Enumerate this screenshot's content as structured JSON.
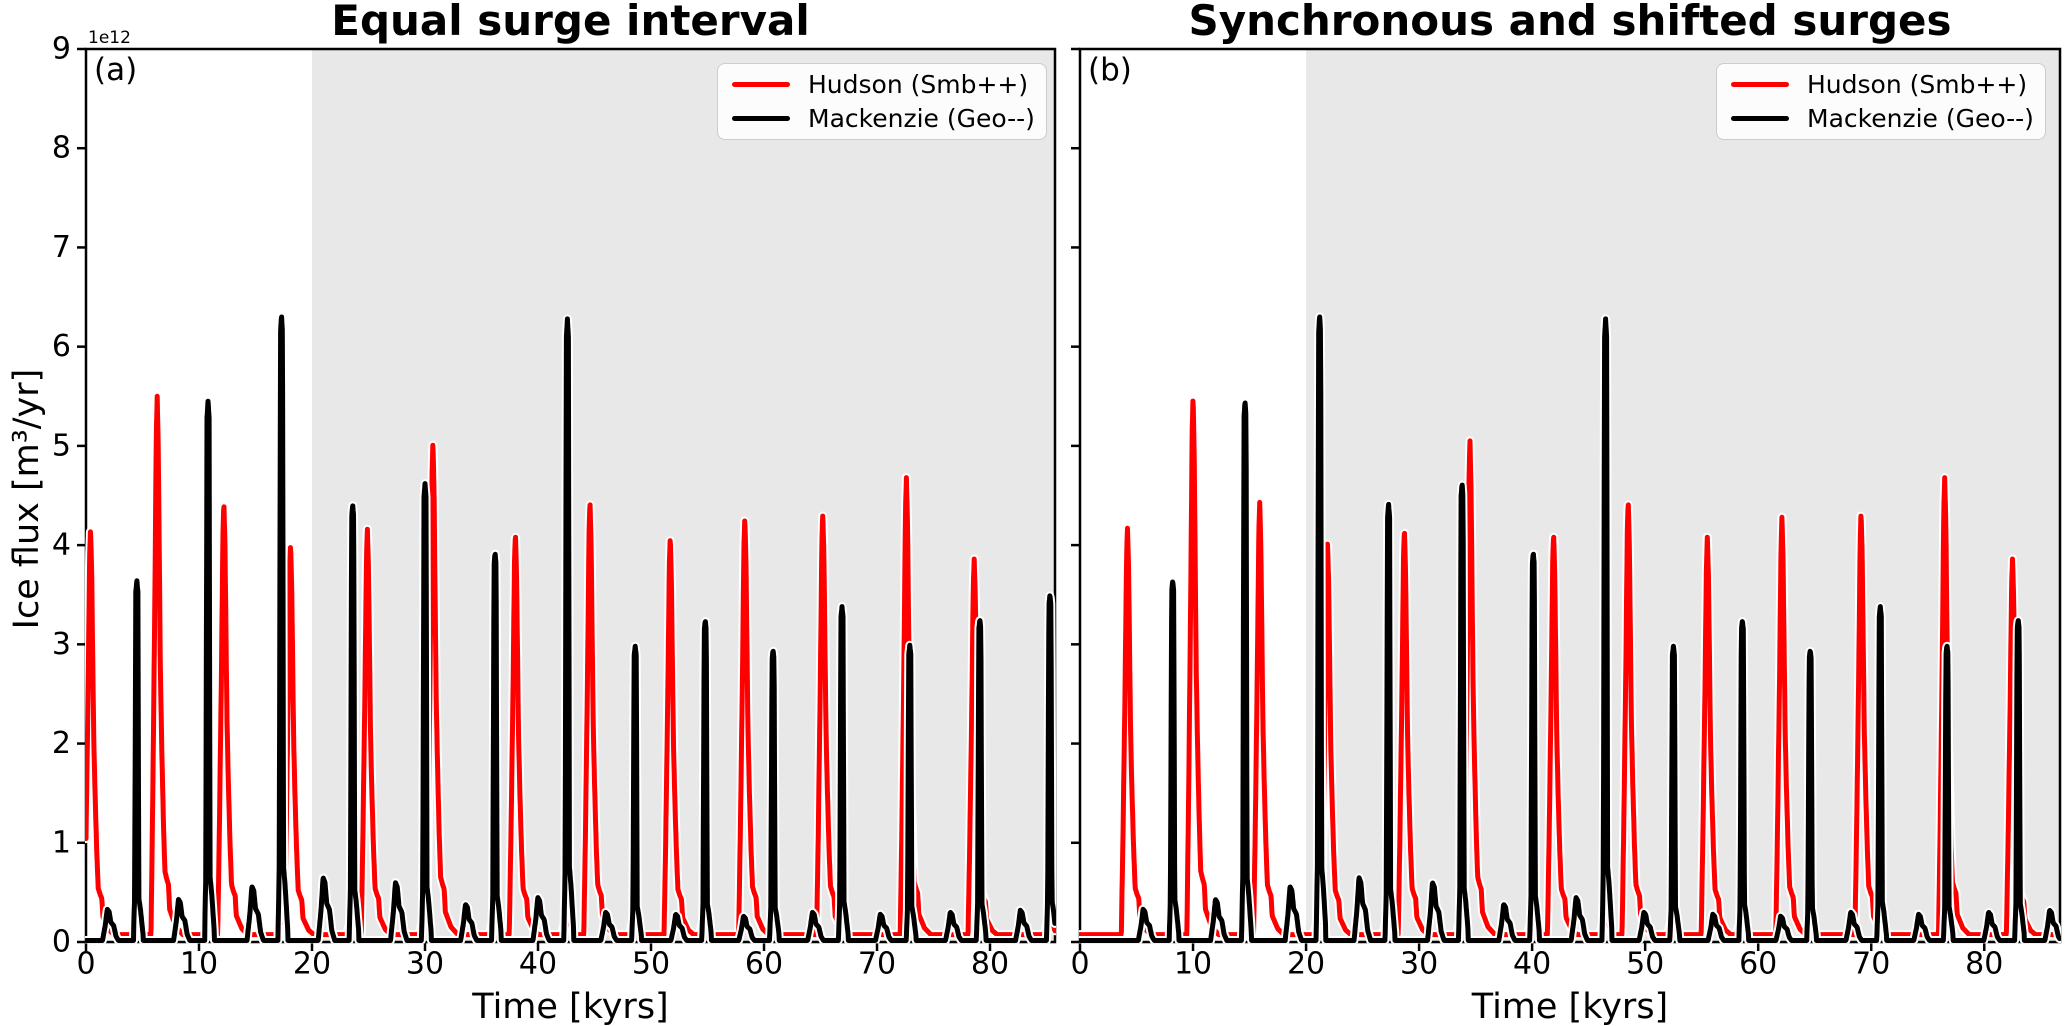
{
  "figure": {
    "background": "#ffffff",
    "hudson_color": "#ff0000",
    "mackenzie_color": "#000000",
    "shade_color": "#e8e8e8",
    "legend_border_color": "#cccccc"
  },
  "axes": {
    "ylabel": "Ice flux [m³/yr]",
    "xlabel": "Time [kyrs]",
    "offset_label": "1e12",
    "yticks": [
      0,
      1,
      2,
      3,
      4,
      5,
      6,
      7,
      8,
      9
    ],
    "xticks": [
      0,
      10,
      20,
      30,
      40,
      50,
      60,
      70,
      80
    ]
  },
  "legend": {
    "entries": [
      {
        "label": "Hudson (Smb++)",
        "color": "#ff0000"
      },
      {
        "label": "Mackenzie (Geo--)",
        "color": "#000000"
      }
    ]
  },
  "chart_data": [
    {
      "type": "line",
      "title": "Equal surge interval",
      "panel_label": "(a)",
      "xlabel": "Time [kyrs]",
      "ylabel": "Ice flux [m³/yr]",
      "y_scale_factor": "1e12",
      "xlim": [
        0,
        85.75
      ],
      "ylim": [
        0,
        9.0
      ],
      "grid": false,
      "legend_position": "upper right",
      "shaded_region_kyr": [
        20,
        85.75
      ],
      "series": [
        {
          "name": "Hudson (Smb++)",
          "color": "#ff0000",
          "baseline": 0.075,
          "surge_peaks": {
            "t": [
              0.4,
              6.3,
              12.2,
              18.1,
              24.9,
              30.7,
              38.0,
              44.6,
              51.7,
              58.3,
              65.2,
              72.6,
              78.6
            ],
            "v": [
              4.17,
              5.5,
              4.43,
              4.01,
              4.16,
              5.05,
              4.12,
              4.45,
              4.08,
              4.28,
              4.33,
              4.68,
              3.86
            ]
          },
          "minor_bumps": {
            "t": [
              4.5,
              10.8,
              17.3,
              23.6,
              30.0,
              36.2,
              42.6,
              48.6,
              54.8,
              60.8,
              66.9,
              72.9,
              79.1,
              85.3
            ],
            "v": [
              0.2,
              0.2,
              0.2,
              0.2,
              0.2,
              0.2,
              0.2,
              0.2,
              0.2,
              0.2,
              0.2,
              0.2,
              0.2,
              0.2
            ]
          }
        },
        {
          "name": "Mackenzie (Geo--)",
          "color": "#000000",
          "baseline": 0.015,
          "surge_peaks": {
            "t": [
              4.5,
              10.8,
              17.3,
              23.6,
              30.0,
              36.2,
              42.6,
              48.6,
              54.8,
              60.8,
              66.9,
              72.9,
              79.1,
              85.3
            ],
            "v": [
              3.64,
              5.45,
              6.32,
              4.41,
              4.62,
              3.92,
              6.28,
              2.98,
              3.24,
              2.94,
              3.38,
              2.99,
              3.25,
              3.5
            ]
          },
          "minor_bumps": {
            "t": [
              2.0,
              8.3,
              14.8,
              21.1,
              27.5,
              33.7,
              40.1,
              46.1,
              52.3,
              58.3,
              64.4,
              70.4,
              76.6,
              82.8
            ],
            "v": [
              0.33,
              0.43,
              0.56,
              0.65,
              0.6,
              0.38,
              0.45,
              0.3,
              0.28,
              0.26,
              0.3,
              0.28,
              0.3,
              0.32
            ]
          }
        }
      ]
    },
    {
      "type": "line",
      "title": "Synchronous and shifted surges",
      "panel_label": "(b)",
      "xlabel": "Time [kyrs]",
      "ylabel": "Ice flux [m³/yr]",
      "y_scale_factor": "1e12",
      "xlim": [
        0,
        86.7
      ],
      "ylim": [
        0,
        9.0
      ],
      "grid": false,
      "legend_position": "upper right",
      "shaded_region_kyr": [
        20,
        86.7
      ],
      "series": [
        {
          "name": "Hudson (Smb++)",
          "color": "#ff0000",
          "baseline": 0.075,
          "surge_peaks": {
            "t": [
              4.2,
              10.0,
              15.9,
              21.9,
              28.7,
              34.5,
              41.9,
              48.5,
              55.5,
              62.1,
              69.1,
              76.5,
              82.5
            ],
            "v": [
              4.17,
              5.5,
              4.43,
              4.01,
              4.16,
              5.05,
              4.12,
              4.45,
              4.08,
              4.28,
              4.33,
              4.68,
              3.86
            ]
          },
          "minor_bumps": {
            "t": [
              8.2,
              14.6,
              21.2,
              27.3,
              33.8,
              40.1,
              46.5,
              52.5,
              58.6,
              64.6,
              70.8,
              76.7,
              83.0
            ],
            "v": [
              0.2,
              0.2,
              0.2,
              0.2,
              0.2,
              0.2,
              0.2,
              0.2,
              0.2,
              0.2,
              0.2,
              0.2,
              0.2
            ]
          }
        },
        {
          "name": "Mackenzie (Geo--)",
          "color": "#000000",
          "baseline": 0.015,
          "surge_peaks": {
            "t": [
              8.2,
              14.6,
              21.2,
              27.3,
              33.8,
              40.1,
              46.5,
              52.5,
              58.6,
              64.6,
              70.8,
              76.7,
              83.0
            ],
            "v": [
              3.64,
              5.45,
              6.32,
              4.41,
              4.62,
              3.92,
              6.28,
              2.98,
              3.24,
              2.94,
              3.38,
              2.99,
              3.25
            ]
          },
          "minor_bumps": {
            "t": [
              5.7,
              12.1,
              18.7,
              24.8,
              31.3,
              37.6,
              44.0,
              50.0,
              56.1,
              62.1,
              68.3,
              74.3,
              80.5,
              85.9
            ],
            "v": [
              0.33,
              0.43,
              0.56,
              0.65,
              0.6,
              0.38,
              0.45,
              0.3,
              0.28,
              0.26,
              0.3,
              0.28,
              0.3,
              0.32
            ]
          }
        }
      ]
    }
  ]
}
